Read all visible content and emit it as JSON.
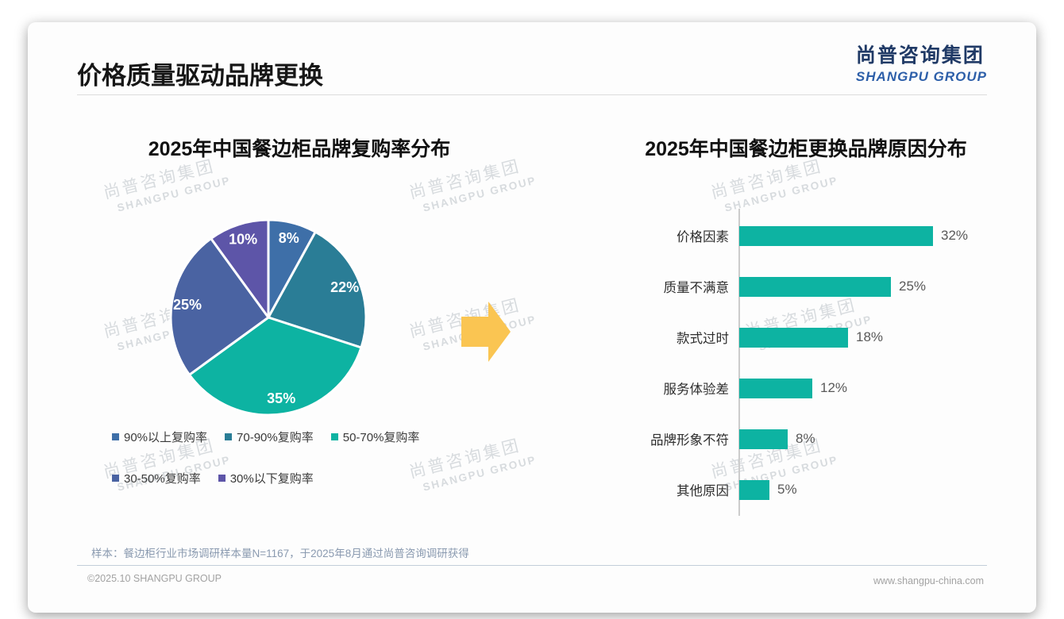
{
  "page": {
    "title": "价格质量驱动品牌更换",
    "logo": {
      "cn": "尚普咨询集团",
      "en": "SHANGPU GROUP"
    },
    "watermark": {
      "cn": "尚普咨询集团",
      "en": "SHANGPU GROUP"
    },
    "footnote": "样本：餐边柜行业市场调研样本量N=1167，于2025年8月通过尚普咨询调研获得",
    "footer_left": "©2025.10 SHANGPU GROUP",
    "footer_right": "www.shangpu-china.com"
  },
  "colors": {
    "accent_teal": "#0db3a2",
    "arrow_yellow": "#fac552",
    "logo_navy": "#203a66",
    "logo_blue": "#2d5fa9"
  },
  "chart_data": [
    {
      "type": "pie",
      "title": "2025年中国餐边柜品牌复购率分布",
      "labels": [
        "90%以上复购率",
        "70-90%复购率",
        "50-70%复购率",
        "30-50%复购率",
        "30%以下复购率"
      ],
      "values": [
        8,
        22,
        35,
        25,
        10
      ],
      "value_suffix": "%",
      "colors": [
        "#3e6fa8",
        "#2a7d96",
        "#0db3a2",
        "#4a63a2",
        "#5d55a8"
      ],
      "start_angle_deg": 0,
      "direction": "clockwise",
      "legend_position": "bottom"
    },
    {
      "type": "bar",
      "title": "2025年中国餐边柜更换品牌原因分布",
      "orientation": "horizontal",
      "categories": [
        "价格因素",
        "质量不满意",
        "款式过时",
        "服务体验差",
        "品牌形象不符",
        "其他原因"
      ],
      "values": [
        32,
        25,
        18,
        12,
        8,
        5
      ],
      "value_suffix": "%",
      "bar_color": "#0db3a2",
      "xlim": [
        0,
        35
      ],
      "grid": false
    }
  ]
}
